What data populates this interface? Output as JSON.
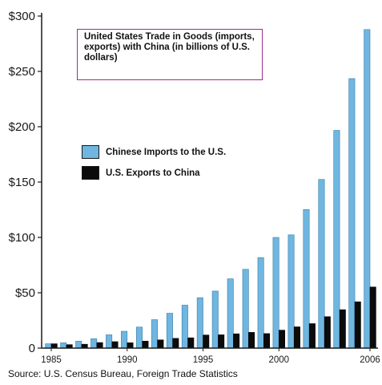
{
  "chart_data": {
    "type": "bar",
    "title": "United States Trade in Goods (imports, exports) with China (in billions of U.S. dollars)",
    "x": [
      1985,
      1986,
      1987,
      1988,
      1989,
      1990,
      1991,
      1992,
      1993,
      1994,
      1995,
      1996,
      1997,
      1998,
      1999,
      2000,
      2001,
      2002,
      2003,
      2004,
      2005,
      2006
    ],
    "x_tick_labels": [
      "1985",
      "1990",
      "1995",
      "2000",
      "2006"
    ],
    "x_tick_values": [
      1985,
      1990,
      1995,
      2000,
      2006
    ],
    "y_tick_labels": [
      "0",
      "$50",
      "$100",
      "$150",
      "$200",
      "$250",
      "$300"
    ],
    "y_tick_values": [
      0,
      50,
      100,
      150,
      200,
      250,
      300
    ],
    "ylim": [
      0,
      300
    ],
    "series": [
      {
        "name": "Chinese Imports to the U.S.",
        "color": "#6fb6e0",
        "values": [
          3.9,
          4.8,
          6.3,
          8.5,
          12.0,
          15.2,
          19.0,
          25.7,
          31.5,
          38.8,
          45.5,
          51.5,
          62.6,
          71.2,
          81.8,
          100.0,
          102.3,
          125.2,
          152.4,
          196.7,
          243.5,
          287.8
        ]
      },
      {
        "name": "U.S. Exports to China",
        "color": "#0b0b0b",
        "values": [
          3.9,
          3.1,
          3.5,
          5.0,
          5.8,
          4.8,
          6.3,
          7.4,
          8.8,
          9.3,
          11.8,
          12.0,
          12.9,
          14.2,
          13.1,
          16.2,
          19.2,
          22.1,
          28.4,
          34.7,
          41.8,
          55.2
        ]
      }
    ],
    "legend_position": "left",
    "grid": false
  },
  "source_text": "Source: U.S. Census Bureau, Foreign Trade Statistics"
}
